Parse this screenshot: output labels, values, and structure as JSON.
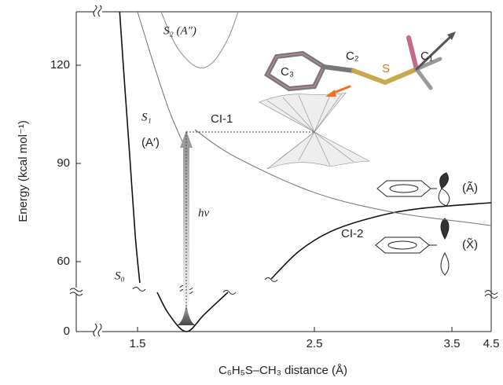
{
  "chart_data": {
    "type": "line",
    "x_label": "C₆H₅S–CH₃ distance (Å)",
    "y_label": "Energy (kcal mol⁻¹)",
    "xlim": [
      1.15,
      4.5
    ],
    "xticks": [
      1.5,
      2.5,
      3.5,
      4.5
    ],
    "ylim": [
      0,
      136
    ],
    "yticks": [
      0,
      60,
      90,
      120
    ],
    "series": [
      {
        "name": "S₀",
        "color": "#111111",
        "x": [
          1.398,
          1.424,
          1.456,
          1.487,
          1.513,
          null,
          1.611,
          1.678,
          1.776,
          1.878,
          2.011,
          null,
          2.256,
          2.411,
          2.614,
          2.9,
          3.243,
          4.5
        ],
        "values": [
          136,
          115.9,
          91.9,
          67.9,
          41.8,
          null,
          33.7,
          14.8,
          0,
          14.8,
          33.7,
          null,
          45.2,
          63.1,
          69.1,
          73.2,
          76.1,
          78.0
        ]
      },
      {
        "name": "S₁",
        "color": "#707070",
        "x": [
          1.5,
          1.589,
          1.678,
          1.753,
          null,
          1.824,
          2.056,
          2.5,
          3.071,
          4.021,
          4.5
        ],
        "values": [
          136,
          120.7,
          106.3,
          96.7,
          null,
          100.3,
          91.9,
          81.1,
          75.1,
          71.8,
          71.0
        ]
      },
      {
        "name": "S₂ (A″)",
        "color": "#8a8a8a",
        "x": [
          1.633,
          1.722,
          1.833,
          1.922,
          2.011,
          2.069
        ],
        "values": [
          136,
          125.5,
          119.5,
          120.7,
          127.9,
          136
        ]
      }
    ],
    "annotations": [
      "(A′)",
      "hν",
      "CI-1",
      "CI-2",
      "(Ã)",
      "(X̃)"
    ],
    "molecule_labels": [
      "C₃",
      "C₂",
      "S",
      "C₁"
    ]
  }
}
